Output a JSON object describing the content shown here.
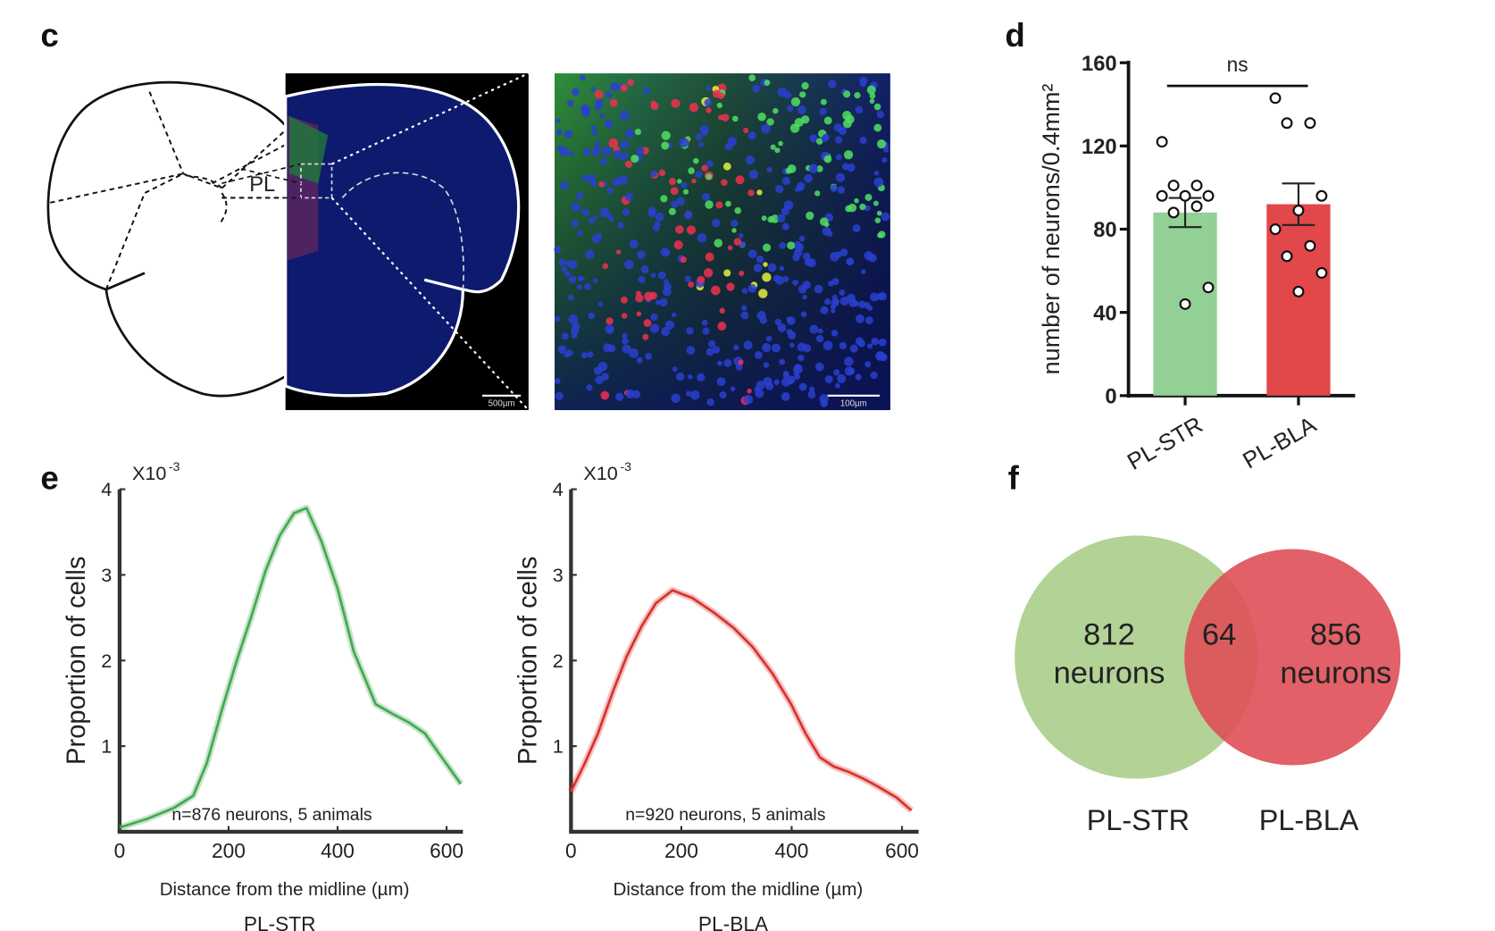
{
  "panel_labels": [
    "c",
    "d",
    "e",
    "f"
  ],
  "images": {
    "region_label": "PL",
    "scale_bars": [
      "500µm",
      "100µm"
    ]
  },
  "chart_data": [
    {
      "type": "bar",
      "ylabel": "number of neurons/0.4mm²",
      "annotation": "ns",
      "categories": [
        "PL-STR",
        "PL-BLA"
      ],
      "values": [
        88,
        92
      ],
      "errors": [
        7,
        10
      ],
      "colors": [
        "#93d095",
        "#e2474a"
      ],
      "points": [
        [
          122,
          101,
          101,
          96,
          96,
          96,
          91,
          88,
          52,
          44
        ],
        [
          143,
          131,
          131,
          96,
          89,
          80,
          72,
          67,
          59,
          50
        ]
      ],
      "ylim": [
        0,
        160
      ],
      "yticks": [
        0,
        40,
        80,
        120,
        160
      ]
    },
    {
      "type": "line",
      "title": "PL-STR",
      "xlabel": "Distance from the midline (µm)",
      "ylabel": "Proportion of cells",
      "y_multiplier": "X10",
      "y_multiplier_exponent": "-3",
      "annotation": "n=876 neurons, 5 animals",
      "color": "#45a852",
      "x": [
        0,
        50,
        100,
        135,
        160,
        188,
        215,
        241,
        268,
        294,
        320,
        343,
        370,
        400,
        430,
        470,
        500,
        530,
        560,
        590,
        626
      ],
      "values": [
        0.05,
        0.15,
        0.28,
        0.42,
        0.8,
        1.43,
        2.0,
        2.5,
        3.05,
        3.46,
        3.72,
        3.78,
        3.4,
        2.84,
        2.1,
        1.49,
        1.38,
        1.28,
        1.15,
        0.88,
        0.56
      ],
      "xlim": [
        0,
        630
      ],
      "xticks": [
        0,
        200,
        400,
        600
      ],
      "ylim": [
        0,
        4
      ],
      "yticks": [
        1,
        2,
        3,
        4
      ]
    },
    {
      "type": "line",
      "title": "PL-BLA",
      "xlabel": "Distance from the midline (µm)",
      "ylabel": "Proportion of cells",
      "y_multiplier": "X10",
      "y_multiplier_exponent": "-3",
      "annotation": "n=920 neurons, 5 animals",
      "color": "#d9322e",
      "x": [
        0,
        25,
        49,
        75,
        101,
        128,
        154,
        184,
        220,
        259,
        295,
        329,
        365,
        399,
        425,
        451,
        477,
        503,
        530,
        556,
        590,
        617
      ],
      "values": [
        0.47,
        0.8,
        1.15,
        1.62,
        2.05,
        2.4,
        2.67,
        2.82,
        2.73,
        2.56,
        2.38,
        2.16,
        1.85,
        1.49,
        1.15,
        0.87,
        0.76,
        0.7,
        0.62,
        0.53,
        0.4,
        0.25
      ],
      "xlim": [
        0,
        630
      ],
      "xticks": [
        0,
        200,
        400,
        600
      ],
      "ylim": [
        0,
        4
      ],
      "yticks": [
        1,
        2,
        3,
        4
      ]
    },
    {
      "type": "venn",
      "sets": [
        {
          "name": "PL-STR",
          "value": 812,
          "unit": "neurons",
          "color": "#b3d396"
        },
        {
          "name": "PL-BLA",
          "value": 856,
          "unit": "neurons",
          "color": "#df4f57"
        }
      ],
      "intersection": 64
    }
  ]
}
